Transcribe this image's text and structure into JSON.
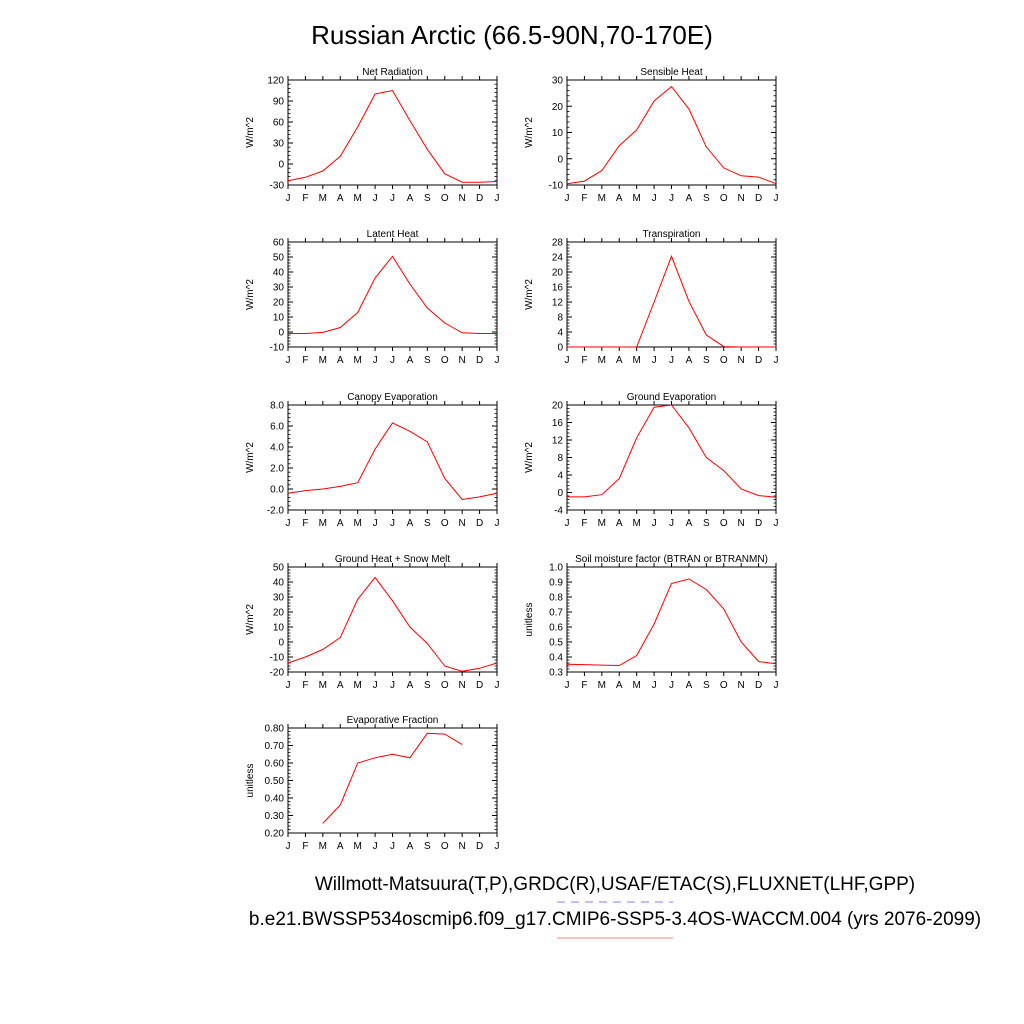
{
  "title": "Russian Arctic (66.5-90N,70-170E)",
  "footer": {
    "line1": "Willmott-Matsuura(T,P),GRDC(R),USAF/ETAC(S),FLUXNET(LHF,GPP)",
    "line2": "b.e21.BWSSP534oscmip6.f09_g17.CMIP6-SSP5-3.4OS-WACCM.004 (yrs 2076-2099)",
    "line1_legend_color": "#8080ff",
    "line2_legend_color": "#ff8080"
  },
  "colors": {
    "series": "#ff0000",
    "axis": "#000000"
  },
  "chart_data": [
    {
      "type": "line",
      "title": "Net Radiation",
      "ylabel": "W/m^2",
      "xlabel": "",
      "categories": [
        "J",
        "F",
        "M",
        "A",
        "M",
        "J",
        "J",
        "A",
        "S",
        "O",
        "N",
        "D",
        "J"
      ],
      "ylim": [
        -30,
        120
      ],
      "yticks": [
        -30,
        0,
        30,
        60,
        90,
        120
      ],
      "yticklabels": [
        "-30",
        "0",
        "30",
        "60",
        "90",
        "120"
      ],
      "series": [
        {
          "values": [
            -24,
            -19,
            -10,
            11,
            53,
            100,
            105,
            62,
            21,
            -14,
            -26,
            -26,
            -25
          ]
        }
      ]
    },
    {
      "type": "line",
      "title": "Sensible Heat",
      "ylabel": "W/m^2",
      "xlabel": "",
      "categories": [
        "J",
        "F",
        "M",
        "A",
        "M",
        "J",
        "J",
        "A",
        "S",
        "O",
        "N",
        "D",
        "J"
      ],
      "ylim": [
        -10,
        30
      ],
      "yticks": [
        -10,
        0,
        10,
        20,
        30
      ],
      "yticklabels": [
        "-10",
        "0",
        "10",
        "20",
        "30"
      ],
      "series": [
        {
          "values": [
            -9.5,
            -8.5,
            -4.5,
            5,
            11,
            22,
            27.5,
            19,
            4.5,
            -3.5,
            -6.5,
            -7,
            -9.5
          ]
        }
      ]
    },
    {
      "type": "line",
      "title": "Latent Heat",
      "ylabel": "W/m^2",
      "xlabel": "",
      "categories": [
        "J",
        "F",
        "M",
        "A",
        "M",
        "J",
        "J",
        "A",
        "S",
        "O",
        "N",
        "D",
        "J"
      ],
      "ylim": [
        -10,
        60
      ],
      "yticks": [
        -10,
        0,
        10,
        20,
        30,
        40,
        50,
        60
      ],
      "yticklabels": [
        "-10",
        "0",
        "10",
        "20",
        "30",
        "40",
        "50",
        "60"
      ],
      "series": [
        {
          "values": [
            -1,
            -1,
            -0.3,
            3,
            13,
            36,
            50.5,
            32,
            16,
            6,
            -0.5,
            -1,
            -1
          ]
        }
      ]
    },
    {
      "type": "line",
      "title": "Transpiration",
      "ylabel": "W/m^2",
      "xlabel": "",
      "categories": [
        "J",
        "F",
        "M",
        "A",
        "M",
        "J",
        "J",
        "A",
        "S",
        "O",
        "N",
        "D",
        "J"
      ],
      "ylim": [
        0,
        28
      ],
      "yticks": [
        0,
        4,
        8,
        12,
        16,
        20,
        24,
        28
      ],
      "yticklabels": [
        "0",
        "4",
        "8",
        "12",
        "16",
        "20",
        "24",
        "28"
      ],
      "series": [
        {
          "values": [
            0,
            0,
            0,
            0,
            0,
            12,
            24.2,
            12.2,
            3.2,
            0.1,
            0,
            0,
            0
          ]
        }
      ]
    },
    {
      "type": "line",
      "title": "Canopy Evaporation",
      "ylabel": "W/m^2",
      "xlabel": "",
      "categories": [
        "J",
        "F",
        "M",
        "A",
        "M",
        "J",
        "J",
        "A",
        "S",
        "O",
        "N",
        "D",
        "J"
      ],
      "ylim": [
        -2,
        8
      ],
      "yticks": [
        -2,
        0,
        2,
        4,
        6,
        8
      ],
      "yticklabels": [
        "-2.0",
        "0.0",
        "2.0",
        "4.0",
        "6.0",
        "8.0"
      ],
      "series": [
        {
          "values": [
            -0.4,
            -0.15,
            0,
            0.25,
            0.6,
            3.8,
            6.3,
            5.5,
            4.5,
            1.0,
            -1.0,
            -0.75,
            -0.4
          ]
        }
      ]
    },
    {
      "type": "line",
      "title": "Ground Evaporation",
      "ylabel": "W/m^2",
      "xlabel": "",
      "categories": [
        "J",
        "F",
        "M",
        "A",
        "M",
        "J",
        "J",
        "A",
        "S",
        "O",
        "N",
        "D",
        "J"
      ],
      "ylim": [
        -4,
        20
      ],
      "yticks": [
        -4,
        0,
        4,
        8,
        12,
        16,
        20
      ],
      "yticklabels": [
        "-4",
        "0",
        "4",
        "8",
        "12",
        "16",
        "20"
      ],
      "series": [
        {
          "values": [
            -1,
            -1,
            -0.5,
            3.2,
            12.5,
            19.5,
            20,
            14.8,
            8,
            5,
            0.8,
            -0.7,
            -1.1
          ]
        }
      ]
    },
    {
      "type": "line",
      "title": "Ground Heat + Snow Melt",
      "ylabel": "W/m^2",
      "xlabel": "",
      "categories": [
        "J",
        "F",
        "M",
        "A",
        "M",
        "J",
        "J",
        "A",
        "S",
        "O",
        "N",
        "D",
        "J"
      ],
      "ylim": [
        -20,
        50
      ],
      "yticks": [
        -20,
        -10,
        0,
        10,
        20,
        30,
        40,
        50
      ],
      "yticklabels": [
        "-20",
        "-10",
        "0",
        "10",
        "20",
        "30",
        "40",
        "50"
      ],
      "series": [
        {
          "values": [
            -14,
            -10,
            -5,
            3,
            28.5,
            43,
            27.5,
            10,
            -1,
            -16,
            -19.5,
            -17.5,
            -14
          ]
        }
      ]
    },
    {
      "type": "line",
      "title": "Soil moisture factor (BTRAN or BTRANMN)",
      "ylabel": "unitless",
      "xlabel": "",
      "categories": [
        "J",
        "F",
        "M",
        "A",
        "M",
        "J",
        "J",
        "A",
        "S",
        "O",
        "N",
        "D",
        "J"
      ],
      "ylim": [
        0.3,
        1.0
      ],
      "yticks": [
        0.3,
        0.4,
        0.5,
        0.6,
        0.7,
        0.8,
        0.9,
        1.0
      ],
      "yticklabels": [
        "0.3",
        "0.4",
        "0.5",
        "0.6",
        "0.7",
        "0.8",
        "0.9",
        "1.0"
      ],
      "series": [
        {
          "values": [
            0.352,
            0.349,
            0.346,
            0.343,
            0.41,
            0.62,
            0.89,
            0.92,
            0.85,
            0.72,
            0.5,
            0.37,
            0.355
          ]
        }
      ]
    },
    {
      "type": "line",
      "title": "Evaporative Fraction",
      "ylabel": "unitless",
      "xlabel": "",
      "categories": [
        "J",
        "F",
        "M",
        "A",
        "M",
        "J",
        "J",
        "A",
        "S",
        "O",
        "N",
        "D",
        "J"
      ],
      "ylim": [
        0.2,
        0.8
      ],
      "yticks": [
        0.2,
        0.3,
        0.4,
        0.5,
        0.6,
        0.7,
        0.8
      ],
      "yticklabels": [
        "0.20",
        "0.30",
        "0.40",
        "0.50",
        "0.60",
        "0.70",
        "0.80"
      ],
      "series": [
        {
          "values": [
            null,
            null,
            0.255,
            0.36,
            0.6,
            0.63,
            0.65,
            0.63,
            0.77,
            0.765,
            0.705,
            null,
            null
          ]
        }
      ]
    }
  ]
}
